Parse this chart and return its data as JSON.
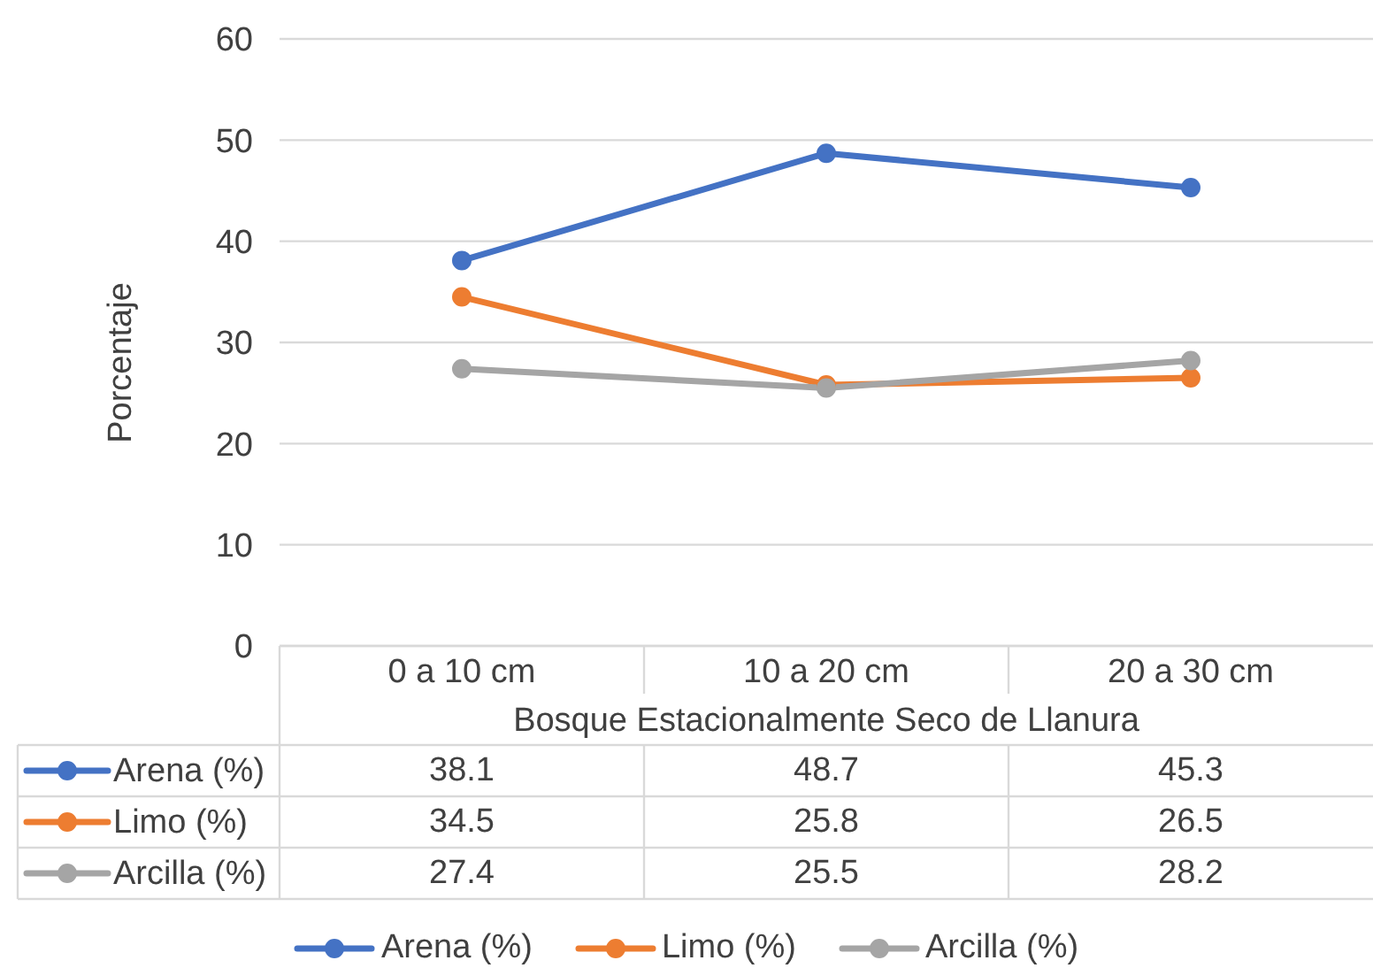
{
  "chart_data": {
    "type": "line",
    "categories": [
      "0 a 10 cm",
      "10 a 20 cm",
      "20 a 30 cm"
    ],
    "xlabel": "Bosque Estacionalmente Seco de Llanura",
    "ylabel": "Porcentaje",
    "series": [
      {
        "name": "Arena (%)",
        "color": "#4472c4",
        "values": [
          38.1,
          48.7,
          45.3
        ]
      },
      {
        "name": "Limo (%)",
        "color": "#ed7d31",
        "values": [
          34.5,
          25.8,
          26.5
        ]
      },
      {
        "name": "Arcilla (%)",
        "color": "#a5a5a5",
        "values": [
          27.4,
          25.5,
          28.2
        ]
      }
    ],
    "ylim": [
      0,
      60
    ],
    "yticks": [
      0,
      10,
      20,
      30,
      40,
      50,
      60
    ],
    "grid": "y",
    "legend": "bottom",
    "marker": "circle",
    "line_style": "solid",
    "data_labels": true
  }
}
